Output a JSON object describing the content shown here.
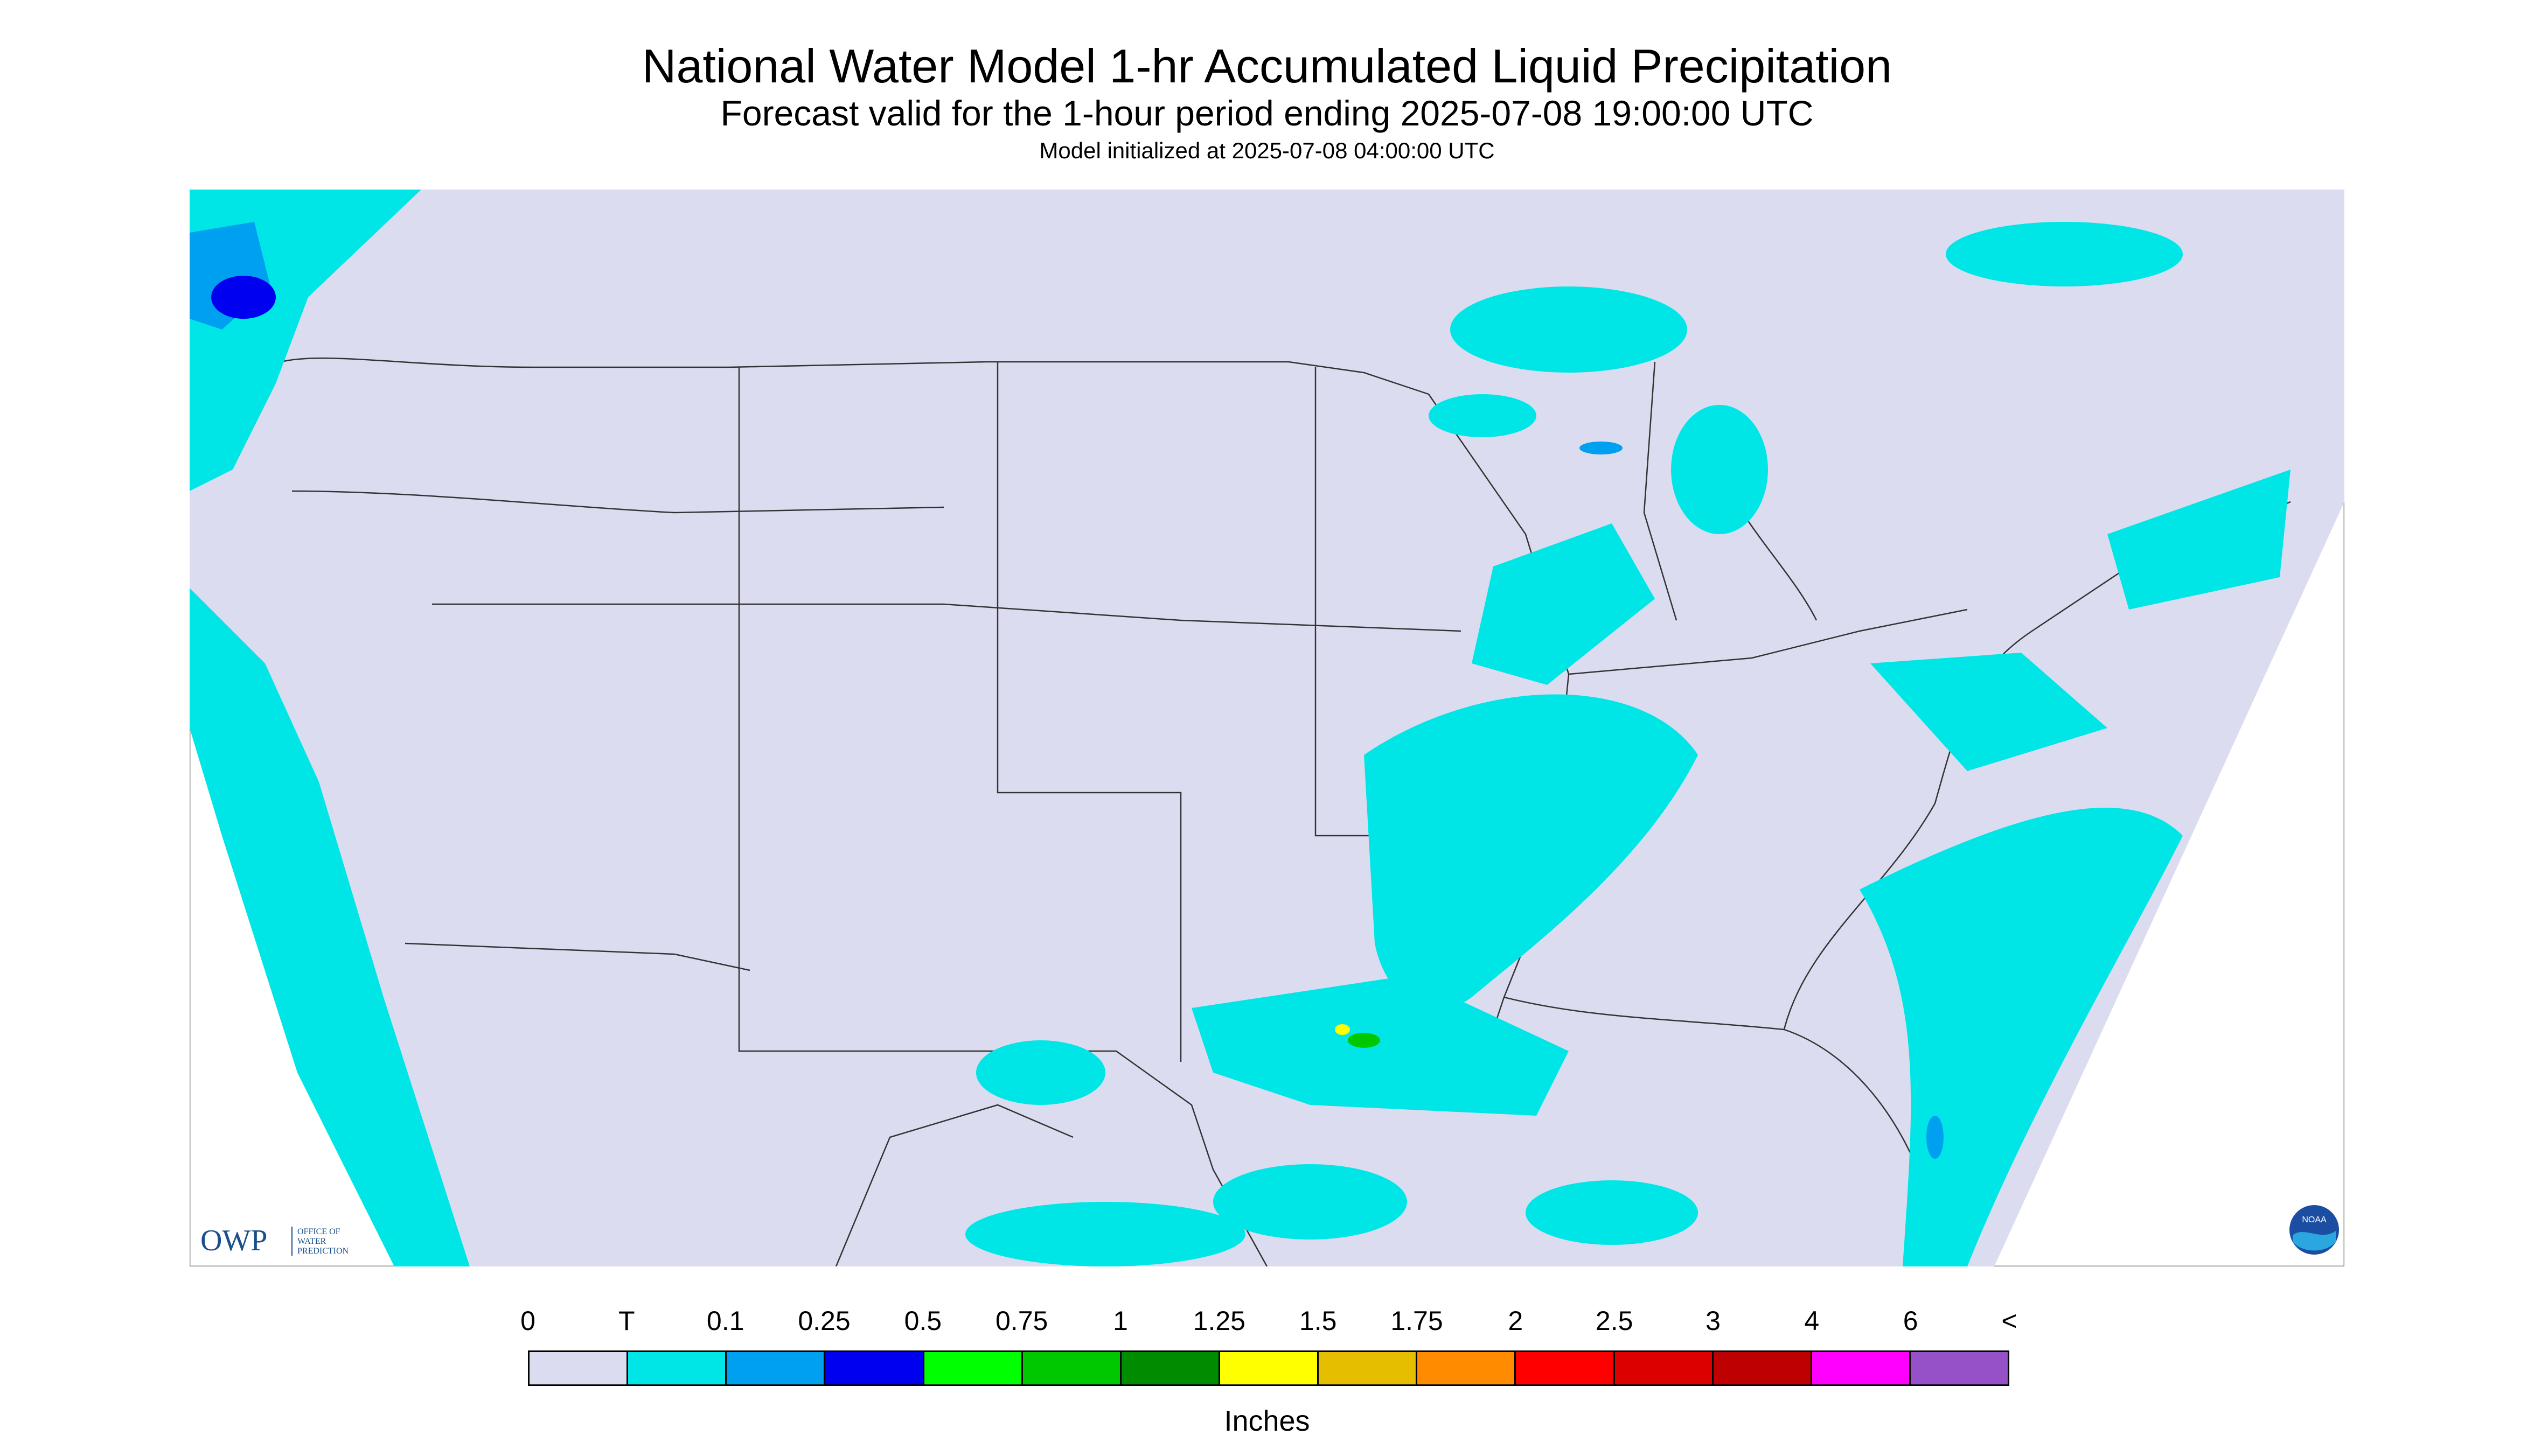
{
  "header": {
    "title": "National Water Model 1-hr Accumulated Liquid Precipitation",
    "subtitle": "Forecast valid for the 1-hour period ending 2025-07-08 19:00:00 UTC",
    "init": "Model initialized at 2025-07-08 04:00:00 UTC"
  },
  "map": {
    "background_color": "#dcdcf0",
    "border_color": "#888888",
    "projection_outline": "conic CONUS domain"
  },
  "legend": {
    "labels": [
      "0",
      "T",
      "0.1",
      "0.25",
      "0.5",
      "0.75",
      "1",
      "1.25",
      "1.5",
      "1.75",
      "2",
      "2.5",
      "3",
      "4",
      "6",
      "<"
    ],
    "colors": [
      "#dcdcf0",
      "#00e6e6",
      "#00a0f0",
      "#0000f0",
      "#00ff00",
      "#00c800",
      "#008c00",
      "#ffff00",
      "#e6be00",
      "#ff8c00",
      "#ff0000",
      "#dc0000",
      "#be0000",
      "#ff00ff",
      "#9650c8"
    ],
    "units": "Inches"
  },
  "logos": {
    "owp_text": "OWP",
    "owp_sub": [
      "OFFICE OF",
      "WATER",
      "PREDICTION"
    ],
    "noaa_text": "NOAA"
  }
}
